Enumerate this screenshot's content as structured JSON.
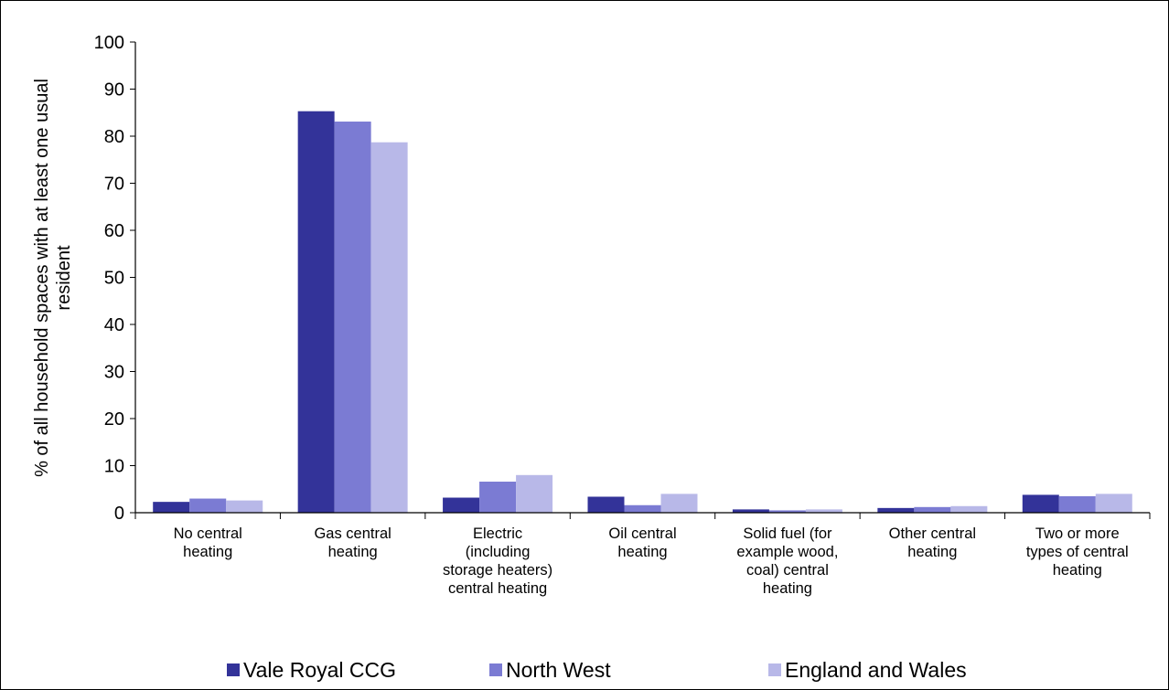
{
  "chart_data": {
    "type": "bar",
    "title": "",
    "ylabel_lines": [
      "% of all household spaces with at least one usual",
      "resident"
    ],
    "xlabel": "",
    "ylim": [
      0,
      100
    ],
    "yticks": [
      0,
      10,
      20,
      30,
      40,
      50,
      60,
      70,
      80,
      90,
      100
    ],
    "grid": false,
    "legend_position": "bottom",
    "categories": [
      [
        "No central",
        "heating"
      ],
      [
        "Gas central",
        "heating"
      ],
      [
        "Electric",
        "(including",
        "storage heaters)",
        "central heating"
      ],
      [
        "Oil central",
        "heating"
      ],
      [
        "Solid fuel (for",
        "example wood,",
        "coal) central",
        "heating"
      ],
      [
        "Other central",
        "heating"
      ],
      [
        "Two or more",
        "types of central",
        "heating"
      ]
    ],
    "series": [
      {
        "name": "Vale Royal CCG",
        "color": "#333399",
        "values": [
          2.3,
          85.3,
          3.2,
          3.4,
          0.7,
          1.0,
          3.8
        ]
      },
      {
        "name": "North West",
        "color": "#7B7BD3",
        "values": [
          3.0,
          83.1,
          6.6,
          1.6,
          0.5,
          1.2,
          3.5
        ]
      },
      {
        "name": "England and Wales",
        "color": "#B8B8E8",
        "values": [
          2.6,
          78.7,
          8.0,
          4.0,
          0.7,
          1.4,
          4.0
        ]
      }
    ]
  }
}
